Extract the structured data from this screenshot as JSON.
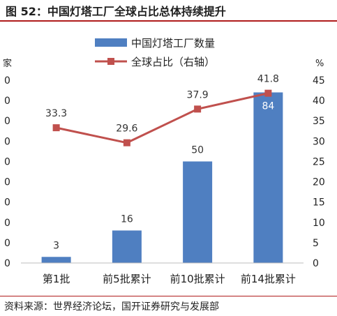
{
  "title": "图 52：中国灯塔工厂全球占比总体持续提升",
  "source": "资料来源：世界经济论坛，国开证券研究与发展部",
  "colors": {
    "bar": "#4f7fc1",
    "line": "#c0504d",
    "rule": "#b01c1c",
    "label_on_bar": "#ffffff"
  },
  "chart_data": {
    "type": "bar",
    "categories": [
      "第1批",
      "前5批累计",
      "前10批累计",
      "前14批累计"
    ],
    "series": [
      {
        "name": "中国灯塔工厂数量",
        "type": "bar",
        "axis": "left",
        "values": [
          3,
          16,
          50,
          84
        ]
      },
      {
        "name": "全球占比（右轴）",
        "type": "line",
        "axis": "right",
        "values": [
          33.3,
          29.6,
          37.9,
          41.8
        ]
      }
    ],
    "y_left": {
      "label": "家",
      "ticks": [
        "0",
        "0",
        "0",
        "0",
        "0",
        "0",
        "0",
        "0",
        "0",
        "0"
      ],
      "lim": [
        0,
        90
      ]
    },
    "y_right": {
      "label": "%",
      "ticks": [
        0,
        5,
        10,
        15,
        20,
        25,
        30,
        35,
        40,
        45
      ],
      "lim": [
        0,
        45
      ]
    },
    "legend": "top-center",
    "grid": false
  }
}
